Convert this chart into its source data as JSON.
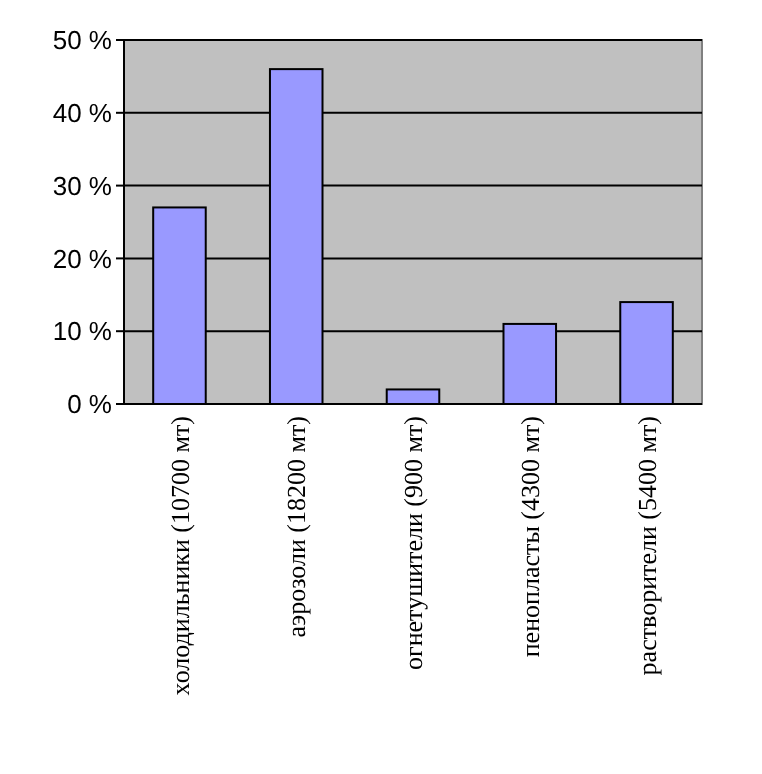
{
  "chart_data": {
    "type": "bar",
    "categories": [
      "холодильники (10700 мт)",
      "аэрозоли (18200 мт)",
      "огнетушители (900 мт)",
      "пенопласты (4300 мт)",
      "растворители (5400 мт)"
    ],
    "values": [
      27,
      46,
      2,
      11,
      14
    ],
    "color": "#9999ff",
    "ylim": [
      0,
      50
    ],
    "yticks": [
      {
        "value": 0,
        "label": "0 %"
      },
      {
        "value": 10,
        "label": "10 %"
      },
      {
        "value": 20,
        "label": "20 %"
      },
      {
        "value": 30,
        "label": "30 %"
      },
      {
        "value": 40,
        "label": "40 %"
      },
      {
        "value": 50,
        "label": "50 %"
      }
    ],
    "grid": "y"
  }
}
